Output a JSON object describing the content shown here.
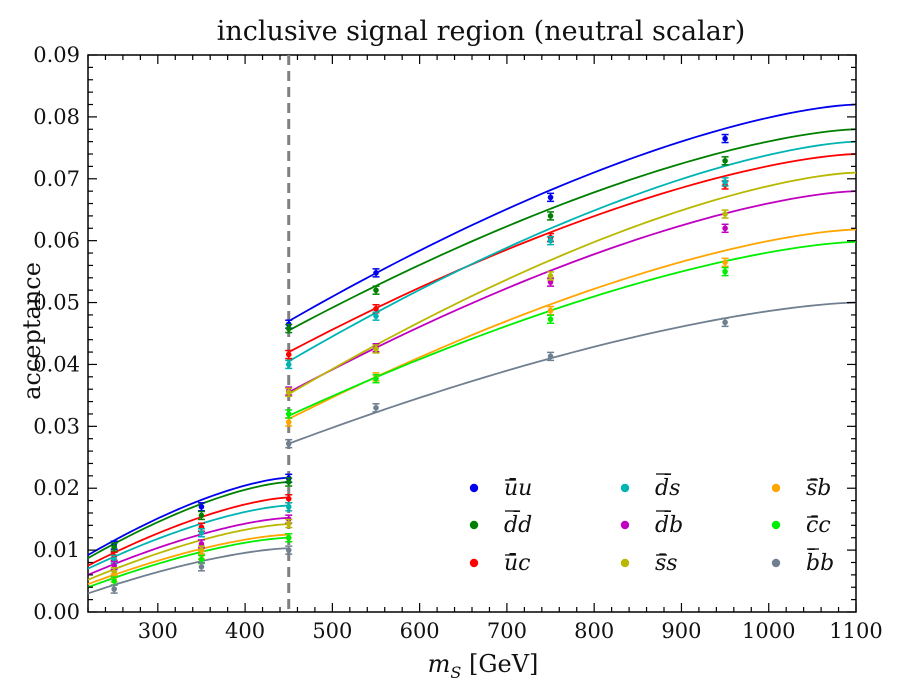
{
  "chart_data": {
    "type": "scatter",
    "title": "inclusive signal region (neutral scalar)",
    "xlabel": "m_S [GeV]",
    "xlabel_main": "m",
    "xlabel_sub": "S",
    "xlabel_unit": " [GeV]",
    "ylabel": "acceptance",
    "xlim": [
      220,
      1100
    ],
    "ylim": [
      0.0,
      0.09
    ],
    "x_ticks": [
      300,
      400,
      500,
      600,
      700,
      800,
      900,
      1000,
      1100
    ],
    "y_ticks": [
      0.0,
      0.01,
      0.02,
      0.03,
      0.04,
      0.05,
      0.06,
      0.07,
      0.08,
      0.09
    ],
    "grid": false,
    "legend_position": "lower-right",
    "threshold_line_x": 450,
    "threshold_line_style": "dashed",
    "threshold_line_color": "#808080",
    "x_low": [
      250,
      350,
      450
    ],
    "x_high": [
      450,
      550,
      750,
      950
    ],
    "series": [
      {
        "name": "ūu",
        "quark1": "u",
        "quark2": "u",
        "color": "#0000ee",
        "low": [
          0.0108,
          0.017,
          0.0216
        ],
        "high": [
          0.0465,
          0.0548,
          0.067,
          0.0765
        ]
      },
      {
        "name": "d̄d",
        "quark1": "d",
        "quark2": "d",
        "color": "#008000",
        "low": [
          0.0105,
          0.0156,
          0.021
        ],
        "high": [
          0.0458,
          0.052,
          0.064,
          0.0729
        ]
      },
      {
        "name": "ūc",
        "quark1": "u",
        "quark2": "c",
        "color": "#ff0000",
        "low": [
          0.009,
          0.0137,
          0.0183
        ],
        "high": [
          0.0416,
          0.049,
          0.0605,
          0.069
        ]
      },
      {
        "name": "d̄s",
        "quark1": "d",
        "quark2": "s",
        "color": "#00b4b4",
        "low": [
          0.0085,
          0.0128,
          0.017
        ],
        "high": [
          0.04,
          0.0478,
          0.06,
          0.0695
        ]
      },
      {
        "name": "d̄b",
        "quark1": "d",
        "quark2": "b",
        "color": "#c000c0",
        "low": [
          0.0075,
          0.011,
          0.015
        ],
        "high": [
          0.0357,
          0.0427,
          0.0533,
          0.062
        ]
      },
      {
        "name": "s̄s",
        "quark1": "s",
        "quark2": "s",
        "color": "#b8b800",
        "low": [
          0.0065,
          0.01,
          0.0143
        ],
        "high": [
          0.0355,
          0.0425,
          0.0543,
          0.0643
        ]
      },
      {
        "name": "s̄b",
        "quark1": "s",
        "quark2": "b",
        "color": "#ffa500",
        "low": [
          0.0055,
          0.0092,
          0.012
        ],
        "high": [
          0.0307,
          0.038,
          0.0487,
          0.0565
        ]
      },
      {
        "name": "c̄c",
        "quark1": "c",
        "quark2": "c",
        "color": "#00ee00",
        "low": [
          0.005,
          0.0085,
          0.012
        ],
        "high": [
          0.032,
          0.0377,
          0.0473,
          0.055
        ]
      },
      {
        "name": "b̄b",
        "quark1": "b",
        "quark2": "b",
        "color": "#708090",
        "low": [
          0.0037,
          0.0073,
          0.01
        ],
        "high": [
          0.0272,
          0.033,
          0.0413,
          0.0468
        ]
      }
    ],
    "fits": [
      {
        "low_ends": [
          0.0092,
          0.0217
        ],
        "high_ends": [
          0.047,
          0.082
        ]
      },
      {
        "low_ends": [
          0.0087,
          0.021
        ],
        "high_ends": [
          0.0455,
          0.078
        ]
      },
      {
        "low_ends": [
          0.0075,
          0.0185
        ],
        "high_ends": [
          0.042,
          0.074
        ]
      },
      {
        "low_ends": [
          0.007,
          0.0172
        ],
        "high_ends": [
          0.0405,
          0.076
        ]
      },
      {
        "low_ends": [
          0.006,
          0.0152
        ],
        "high_ends": [
          0.0355,
          0.068
        ]
      },
      {
        "low_ends": [
          0.0052,
          0.0142
        ],
        "high_ends": [
          0.0352,
          0.071
        ]
      },
      {
        "low_ends": [
          0.0045,
          0.0125
        ],
        "high_ends": [
          0.0312,
          0.0618
        ]
      },
      {
        "low_ends": [
          0.004,
          0.012
        ],
        "high_ends": [
          0.0317,
          0.0598
        ]
      },
      {
        "low_ends": [
          0.003,
          0.0103
        ],
        "high_ends": [
          0.0272,
          0.05
        ]
      }
    ]
  }
}
